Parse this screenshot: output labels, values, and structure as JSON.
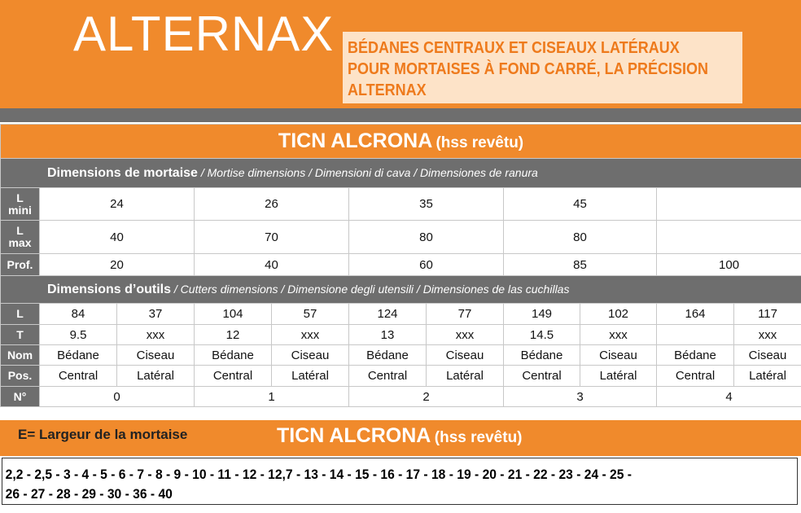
{
  "header": {
    "brand": "ALTERNAX",
    "subtitle_lines": [
      "BÉDANES CENTRAUX ET CISEAUX LATÉRAUX",
      "POUR MORTAISES À FOND CARRÉ, LA PRÉCISION",
      "ALTERNAX"
    ]
  },
  "table": {
    "title_main": "TICN ALCRONA",
    "title_sub": "(hss revêtu)",
    "mortise_section": {
      "label": "Dimensions de mortaise",
      "translations": " / Mortise dimensions / Dimensioni di cava / Dimensiones de ranura"
    },
    "mortise_rows": [
      {
        "head": [
          "L",
          "mini"
        ],
        "values": [
          "24",
          "26",
          "35",
          "45",
          ""
        ]
      },
      {
        "head": [
          "L",
          "max"
        ],
        "values": [
          "40",
          "70",
          "80",
          "80",
          ""
        ]
      },
      {
        "head": [
          "Prof."
        ],
        "values": [
          "20",
          "40",
          "60",
          "85",
          "100"
        ]
      }
    ],
    "tools_section": {
      "label": "Dimensions d’outils",
      "translations": " / Cutters dimensions / Dimensione degli utensili / Dimensiones de las cuchillas"
    },
    "tool_rows": [
      {
        "head": "L",
        "values": [
          "84",
          "37",
          "104",
          "57",
          "124",
          "77",
          "149",
          "102",
          "164",
          "117"
        ]
      },
      {
        "head": "T",
        "values": [
          "9.5",
          "xxx",
          "12",
          "xxx",
          "13",
          "xxx",
          "14.5",
          "xxx",
          "",
          "xxx"
        ]
      },
      {
        "head": "Nom",
        "values": [
          "Bédane",
          "Ciseau",
          "Bédane",
          "Ciseau",
          "Bédane",
          "Ciseau",
          "Bédane",
          "Ciseau",
          "Bédane",
          "Ciseau"
        ]
      },
      {
        "head": "Pos.",
        "values": [
          "Central",
          "Latéral",
          "Central",
          "Latéral",
          "Central",
          "Latéral",
          "Central",
          "Latéral",
          "Central",
          "Latéral"
        ]
      }
    ],
    "number_row": {
      "head": "N°",
      "values": [
        "0",
        "1",
        "2",
        "3",
        "4"
      ]
    }
  },
  "bottom": {
    "label": "E= Largeur de la mortaise",
    "title_main": "TICN ALCRONA",
    "title_sub": "(hss revêtu)",
    "sizes_line1": "2,2 - 2,5 - 3 - 4 - 5 - 6 - 7 - 8 - 9 - 10 - 11 - 12 - 12,7 - 13 - 14 - 15 - 16 - 17 - 18 - 19 - 20 - 21 - 22 - 23 - 24 - 25 -",
    "sizes_line2": "26 - 27 - 28 - 29 - 30 - 36 - 40"
  },
  "colors": {
    "orange": "#f08a2c",
    "subtitle_bg": "#fde3c8",
    "subtitle_text": "#ee7a1c",
    "gray": "#6e6e6e"
  }
}
